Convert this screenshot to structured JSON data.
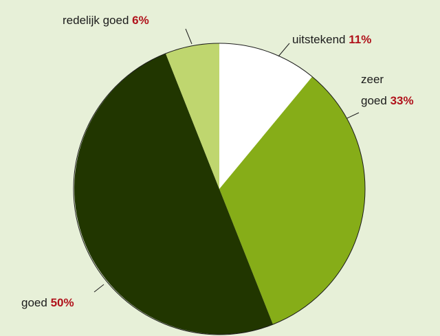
{
  "chart_data": {
    "type": "pie",
    "slices": [
      {
        "label": "uitstekend",
        "value": 11,
        "pct_text": "11%",
        "color": "#ffffff"
      },
      {
        "label_lines": [
          "zeer",
          "goed"
        ],
        "value": 33,
        "pct_text": "33%",
        "color": "#86ad18"
      },
      {
        "label": "goed",
        "value": 50,
        "pct_text": "50%",
        "color": "#213600"
      },
      {
        "label": "redelijk goed",
        "value": 6,
        "pct_text": "6%",
        "color": "#bfd66f"
      }
    ],
    "start_angle_deg": 0,
    "direction": "clockwise",
    "outline_color": "#1b1b1b",
    "background": "#e7f0d8",
    "pct_color": "#b0121b"
  }
}
